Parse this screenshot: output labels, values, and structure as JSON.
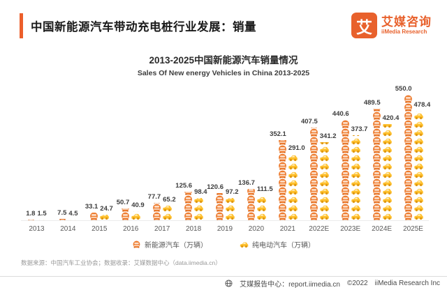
{
  "header": {
    "title": "中国新能源汽车带动充电桩行业发展：销量"
  },
  "logo": {
    "mark": "艾",
    "cn": "艾媒咨询",
    "en": "iiMedia Research"
  },
  "chart_data": {
    "type": "bar",
    "title": "2013-2025中国新能源汽车销量情况",
    "subtitle": "Sales Of New energy Vehicles in China 2013-2025",
    "categories": [
      "2013",
      "2014",
      "2015",
      "2016",
      "2017",
      "2018",
      "2019",
      "2020",
      "2021",
      "2022E",
      "2023E",
      "2024E",
      "2025E"
    ],
    "series": [
      {
        "name": "新能源汽车（万辆）",
        "color": "#EE7C2F",
        "values": [
          1.8,
          7.5,
          33.1,
          50.7,
          77.7,
          125.6,
          120.6,
          136.7,
          352.1,
          407.5,
          440.6,
          489.5,
          550.0
        ]
      },
      {
        "name": "纯电动汽车（万辆）",
        "color": "#FFC12E",
        "values": [
          1.5,
          4.5,
          24.7,
          40.9,
          65.2,
          98.4,
          97.2,
          111.5,
          291.0,
          341.2,
          373.7,
          420.4,
          478.4
        ]
      }
    ],
    "ylim": [
      0,
      550
    ],
    "grid": false,
    "legend_position": "bottom",
    "bar_style": "pictogram-car-icons"
  },
  "source": {
    "text": "数据来源：中国汽车工业协会；数据收录：艾媒数据中心（data.iimedia.cn）"
  },
  "footer": {
    "report_center": "艾媒报告中心：report.iimedia.cn",
    "copyright": "©2022",
    "company": "iiMedia Research  Inc"
  }
}
